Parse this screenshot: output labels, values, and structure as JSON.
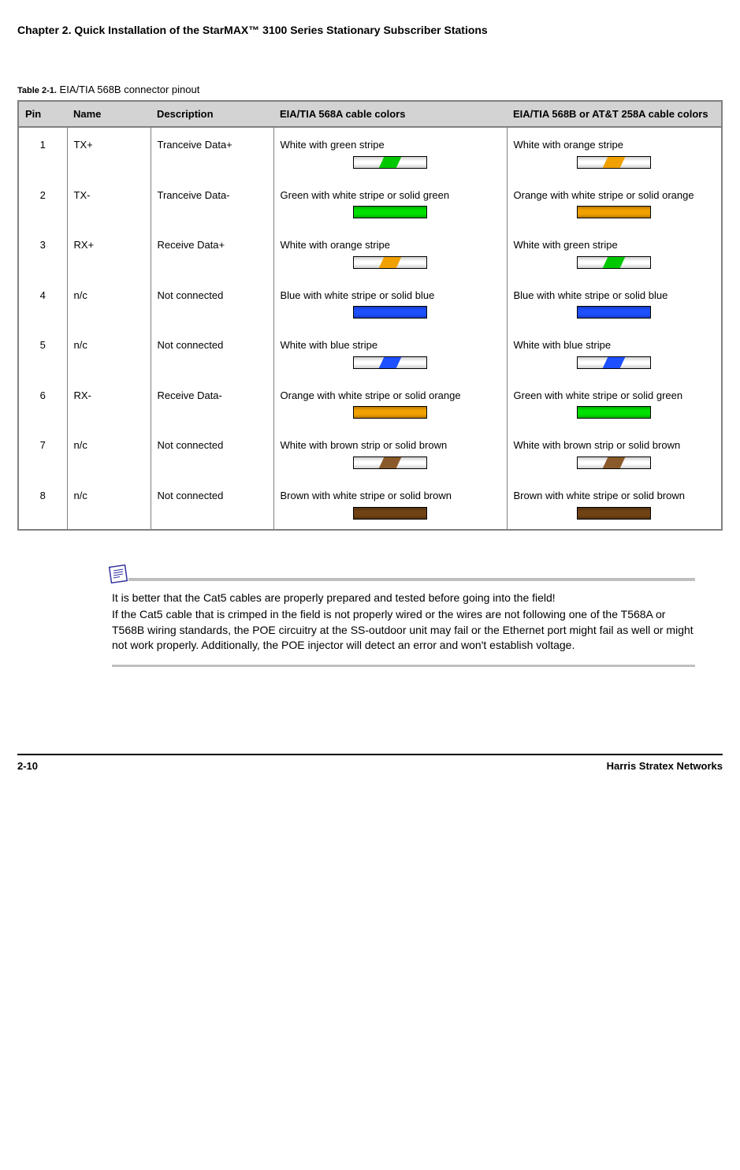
{
  "chapter_heading": "Chapter 2.  Quick Installation of the StarMAX™ 3100 Series Stationary Subscriber Stations",
  "table_caption_prefix": "Table 2-1.",
  "table_caption_title": " EIA/TIA 568B connector pinout",
  "columns": {
    "pin": "Pin",
    "name": "Name",
    "desc": "Description",
    "c568a": "EIA/TIA 568A cable colors",
    "c568b": "EIA/TIA 568B or AT&T 258A cable colors"
  },
  "swatch_defs": {
    "white_green": {
      "mode": "whitestripe",
      "stripe": "#00c800"
    },
    "white_orange": {
      "mode": "whitestripe",
      "stripe": "#f0a000"
    },
    "white_blue": {
      "mode": "whitestripe",
      "stripe": "#1e50ff"
    },
    "white_brown": {
      "mode": "whitestripe",
      "stripe": "#8b5a2b"
    },
    "solid_green": {
      "mode": "solid",
      "color": "#00e000"
    },
    "solid_orange": {
      "mode": "solid",
      "color": "#f0a000"
    },
    "solid_blue": {
      "mode": "solid",
      "color": "#1e50ff"
    },
    "solid_brown": {
      "mode": "solid",
      "color": "#704214"
    }
  },
  "rows": [
    {
      "pin": "1",
      "name": "TX+",
      "desc": "Tranceive Data+",
      "c568a_text": "White with green stripe",
      "c568a_swatch": "white_green",
      "c568b_text": "White with orange stripe",
      "c568b_swatch": "white_orange"
    },
    {
      "pin": "2",
      "name": "TX-",
      "desc": "Tranceive Data-",
      "c568a_text": "Green with white stripe or solid green",
      "c568a_swatch": "solid_green",
      "c568b_text": "Orange with white stripe or solid orange",
      "c568b_swatch": "solid_orange"
    },
    {
      "pin": "3",
      "name": "RX+",
      "desc": "Receive Data+",
      "c568a_text": "White with orange stripe",
      "c568a_swatch": "white_orange",
      "c568b_text": "White with green stripe",
      "c568b_swatch": "white_green"
    },
    {
      "pin": "4",
      "name": "n/c",
      "desc": "Not connected",
      "c568a_text": "Blue with white stripe or solid blue",
      "c568a_swatch": "solid_blue",
      "c568b_text": "Blue with white stripe or solid blue",
      "c568b_swatch": "solid_blue"
    },
    {
      "pin": "5",
      "name": "n/c",
      "desc": "Not connected",
      "c568a_text": "White with blue stripe",
      "c568a_swatch": "white_blue",
      "c568b_text": "White with blue stripe",
      "c568b_swatch": "white_blue"
    },
    {
      "pin": "6",
      "name": "RX-",
      "desc": "Receive Data-",
      "c568a_text": "Orange with white stripe or solid orange",
      "c568a_swatch": "solid_orange",
      "c568b_text": "Green with white stripe or solid green",
      "c568b_swatch": "solid_green"
    },
    {
      "pin": "7",
      "name": "n/c",
      "desc": "Not connected",
      "c568a_text": "White with brown strip or solid brown",
      "c568a_swatch": "white_brown",
      "c568b_text": "White with brown strip or solid brown",
      "c568b_swatch": "white_brown"
    },
    {
      "pin": "8",
      "name": "n/c",
      "desc": "Not connected",
      "c568a_text": "Brown with white stripe or solid brown",
      "c568a_swatch": "solid_brown",
      "c568b_text": "Brown with white stripe or solid brown",
      "c568b_swatch": "solid_brown"
    }
  ],
  "note_line1": "It is better that the Cat5 cables are properly prepared and tested before going into the field!",
  "note_line2": "If the Cat5 cable that is crimped in the field is not properly wired or the wires are not following one of the T568A or T568B wiring standards, the POE circuitry at the SS-outdoor unit may fail or the Ethernet port might fail as well or might not work properly. Additionally, the POE injector will detect an error and won't establish voltage.",
  "footer_left": "2-10",
  "footer_right": "Harris Stratex Networks"
}
